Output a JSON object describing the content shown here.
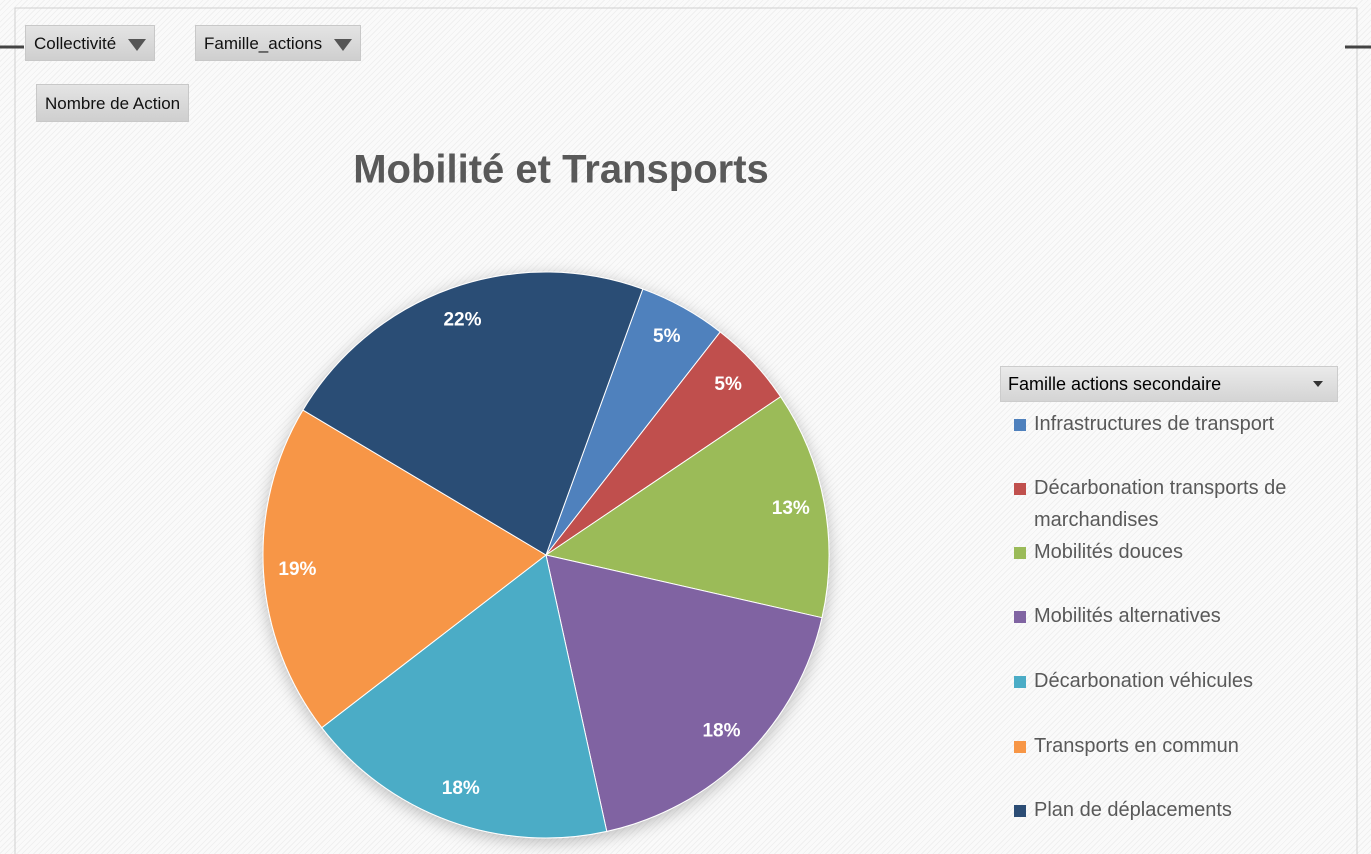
{
  "pivot": {
    "filters": [
      "Collectivité",
      "Famille_actions"
    ],
    "values": [
      "Nombre de Action"
    ]
  },
  "chart_data": {
    "type": "pie",
    "title": "Mobilité et Transports",
    "legend_title": "Famille actions secondaire",
    "categories": [
      "Infrastructures de transport",
      "Décarbonation transports de marchandises",
      "Mobilités douces",
      "Mobilités alternatives",
      "Décarbonation véhicules",
      "Transports en commun",
      "Plan de déplacements"
    ],
    "values": [
      5,
      5,
      13,
      18,
      18,
      19,
      22
    ],
    "value_labels": [
      "5%",
      "5%",
      "13%",
      "18%",
      "18%",
      "19%",
      "22%"
    ],
    "colors": [
      "#4f81bd",
      "#c0504d",
      "#9bbb59",
      "#8064a2",
      "#4bacc6",
      "#f79646",
      "#2c4d75"
    ],
    "legend": "right"
  }
}
